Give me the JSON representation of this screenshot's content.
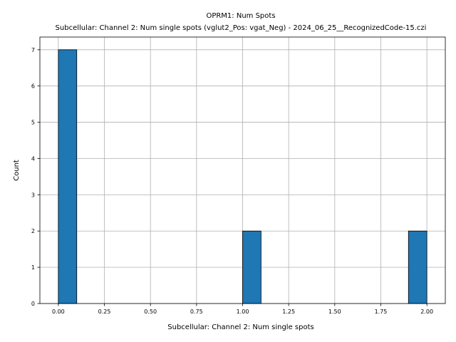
{
  "chart_data": {
    "type": "bar",
    "title": "OPRM1: Num Spots",
    "subtitle": "Subcellular: Channel 2: Num single spots (vglut2_Pos: vgat_Neg) - 2024_06_25__RecognizedCode-15.czi",
    "xlabel": "Subcellular: Channel 2: Num single spots",
    "ylabel": "Count",
    "xlim": [
      -0.1,
      2.1
    ],
    "ylim": [
      0,
      7.35
    ],
    "x_ticks": [
      "0.00",
      "0.25",
      "0.50",
      "0.75",
      "1.00",
      "1.25",
      "1.50",
      "1.75",
      "2.00"
    ],
    "y_ticks": [
      "0",
      "1",
      "2",
      "3",
      "4",
      "5",
      "6",
      "7"
    ],
    "grid": true,
    "bar_color": "#1f77b4",
    "bins": [
      {
        "start": 0.0,
        "end": 0.1,
        "count": 7
      },
      {
        "start": 1.0,
        "end": 1.1,
        "count": 2
      },
      {
        "start": 1.9,
        "end": 2.0,
        "count": 2
      }
    ]
  }
}
